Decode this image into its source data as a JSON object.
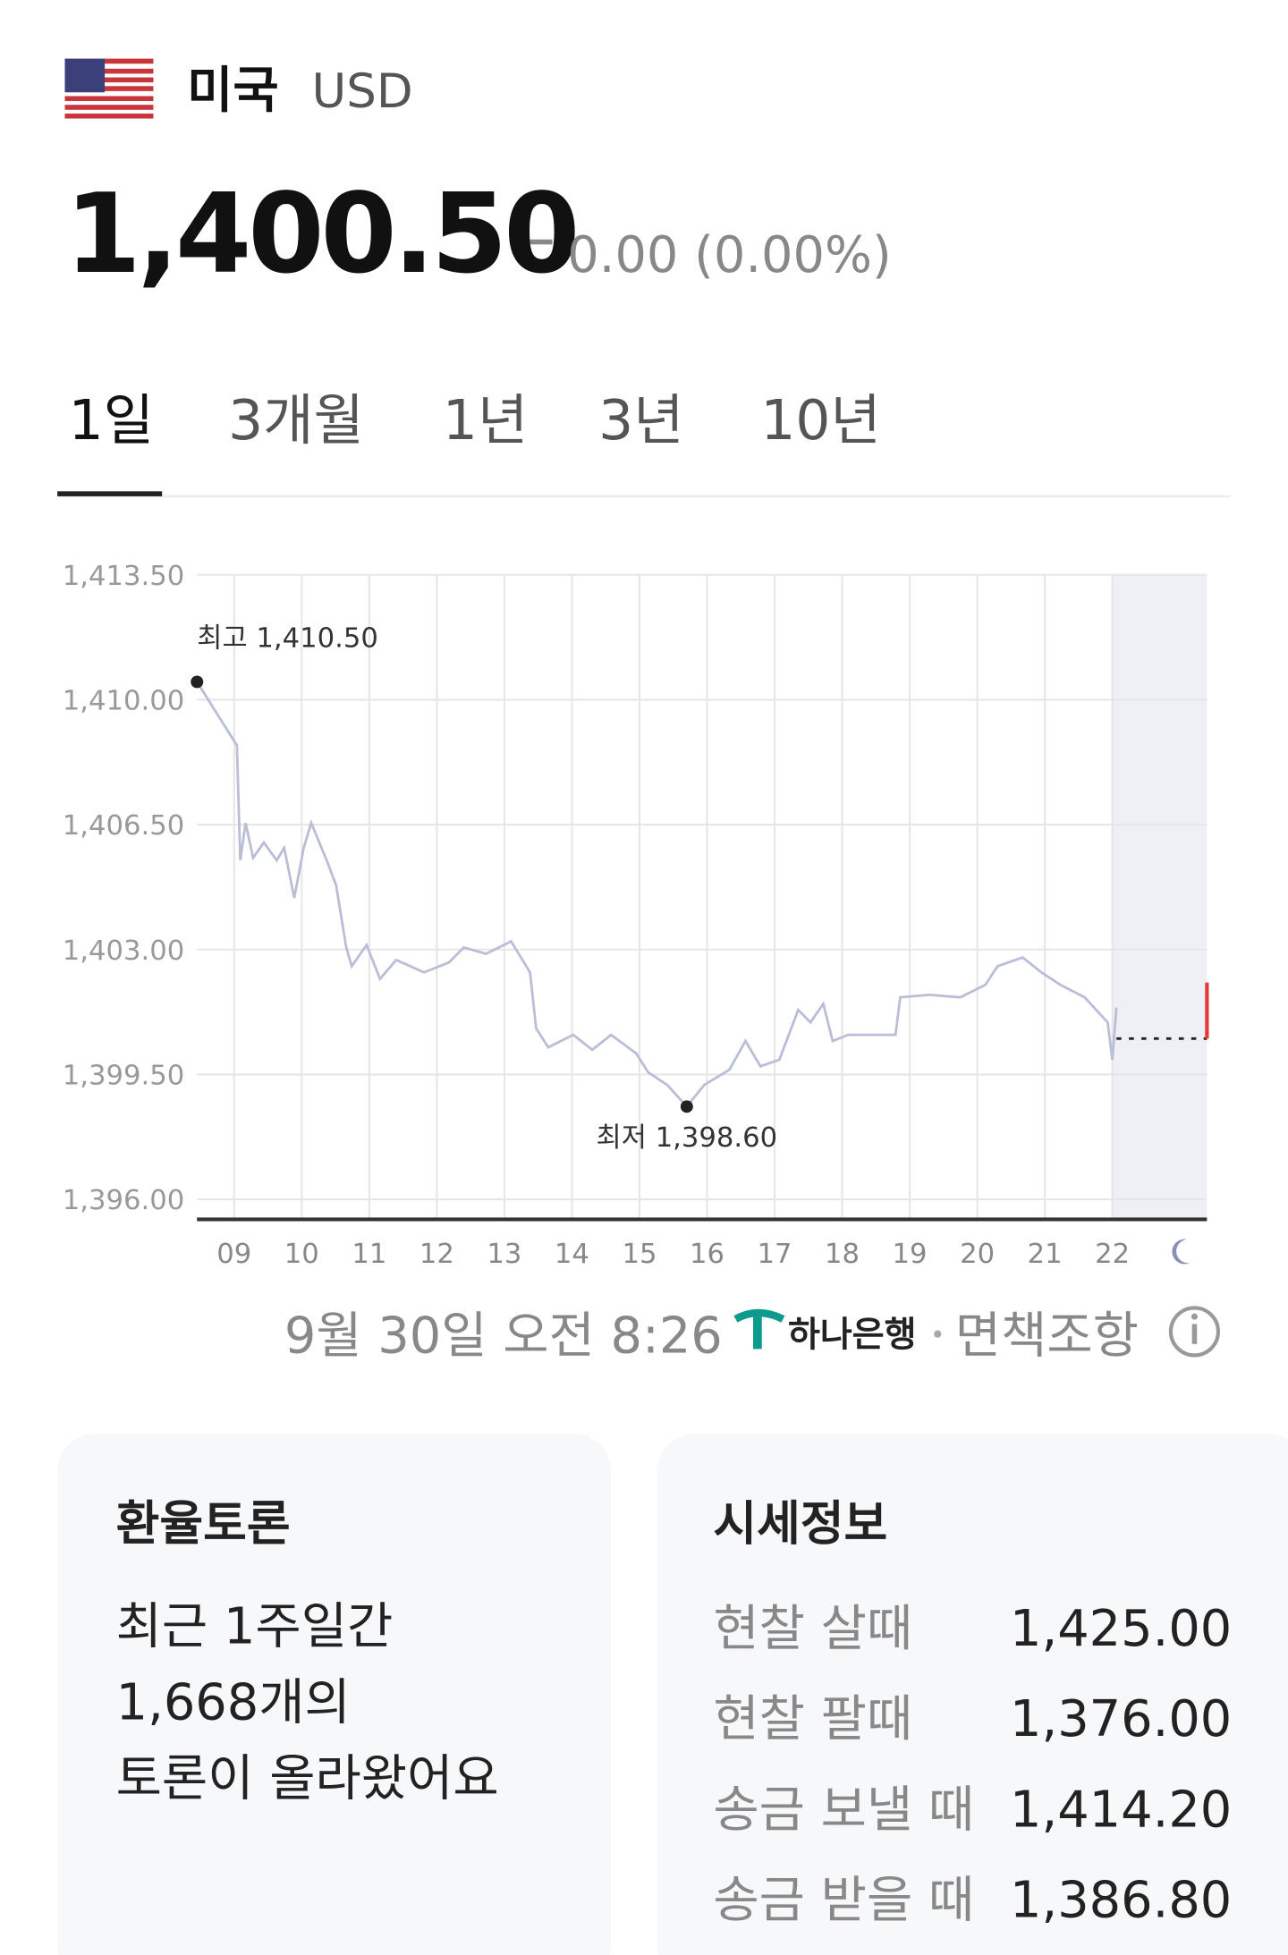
{
  "header": {
    "country": "미국",
    "currency": "USD",
    "price": "1,400.50",
    "change": "0.00 (0.00%)"
  },
  "tabs": [
    "1일",
    "3개월",
    "1년",
    "3년",
    "10년"
  ],
  "chart_data": {
    "type": "line",
    "color": "#b9bed6",
    "x": [
      8.45,
      9.04,
      9.09,
      9.17,
      9.28,
      9.44,
      9.63,
      9.74,
      9.89,
      10.03,
      10.14,
      10.37,
      10.51,
      10.66,
      10.74,
      10.96,
      11.16,
      11.4,
      11.81,
      12.18,
      12.4,
      12.73,
      13.1,
      13.38,
      13.47,
      13.65,
      14.02,
      14.3,
      14.58,
      14.95,
      15.13,
      15.41,
      15.7,
      15.96,
      16.33,
      16.57,
      16.79,
      17.07,
      17.35,
      17.53,
      17.72,
      17.86,
      18.09,
      18.46,
      18.79,
      18.86,
      19.29,
      19.75,
      20.12,
      20.3,
      20.67,
      20.95,
      21.23,
      21.59,
      21.93,
      22.0,
      22.06
    ],
    "values": [
      1410.5,
      1408.72,
      1405.5,
      1406.55,
      1405.57,
      1406.0,
      1405.5,
      1405.85,
      1404.45,
      1405.85,
      1406.55,
      1405.5,
      1404.8,
      1403.06,
      1402.53,
      1403.13,
      1402.18,
      1402.71,
      1402.36,
      1402.64,
      1403.06,
      1402.88,
      1403.23,
      1402.36,
      1400.79,
      1400.26,
      1400.61,
      1400.19,
      1400.61,
      1400.09,
      1399.56,
      1399.21,
      1398.6,
      1399.21,
      1399.63,
      1400.44,
      1399.73,
      1399.91,
      1401.31,
      1400.96,
      1401.48,
      1400.44,
      1400.61,
      1400.61,
      1400.61,
      1401.66,
      1401.73,
      1401.66,
      1402.01,
      1402.53,
      1402.78,
      1402.36,
      1402.01,
      1401.66,
      1400.96,
      1399.91,
      1401.38
    ],
    "xlim": [
      8.45,
      23.4
    ],
    "ylim": [
      1395.44,
      1413.5
    ],
    "xticks": [
      {
        "value": 9,
        "label": "09"
      },
      {
        "value": 10,
        "label": "10"
      },
      {
        "value": 11,
        "label": "11"
      },
      {
        "value": 12,
        "label": "12"
      },
      {
        "value": 13,
        "label": "13"
      },
      {
        "value": 14,
        "label": "14"
      },
      {
        "value": 15,
        "label": "15"
      },
      {
        "value": 16,
        "label": "16"
      },
      {
        "value": 17,
        "label": "17"
      },
      {
        "value": 18,
        "label": "18"
      },
      {
        "value": 19,
        "label": "19"
      },
      {
        "value": 20,
        "label": "20"
      },
      {
        "value": 21,
        "label": "21"
      },
      {
        "value": 22,
        "label": "22"
      }
    ],
    "yticks": [
      {
        "value": 1396,
        "label": "1,396.00"
      },
      {
        "value": 1399.5,
        "label": "1,399.50"
      },
      {
        "value": 1403,
        "label": "1,403.00"
      },
      {
        "value": 1406.5,
        "label": "1,406.50"
      },
      {
        "value": 1410,
        "label": "1,410.00"
      },
      {
        "value": 1413.5,
        "label": "1,413.50"
      }
    ],
    "grid": true,
    "annotations": [
      "최고 1,410.50",
      "최저 1,398.60"
    ]
  },
  "footer": {
    "timestamp": "9월 30일 오전 8:26",
    "source": "하나은행",
    "disclaimer": "면책조항"
  },
  "discussion": {
    "title": "환율토론",
    "lines": [
      "최근 1주일간",
      "1,668개의",
      "토론이 올라왔어요"
    ]
  },
  "rates": {
    "title": "시세정보",
    "rows": [
      [
        "현찰 살때",
        "1,425.00"
      ],
      [
        "현찰 팔때",
        "1,376.00"
      ],
      [
        "송금 보낼 때",
        "1,414.20"
      ],
      [
        "송금 받을 때",
        "1,386.80"
      ]
    ]
  }
}
